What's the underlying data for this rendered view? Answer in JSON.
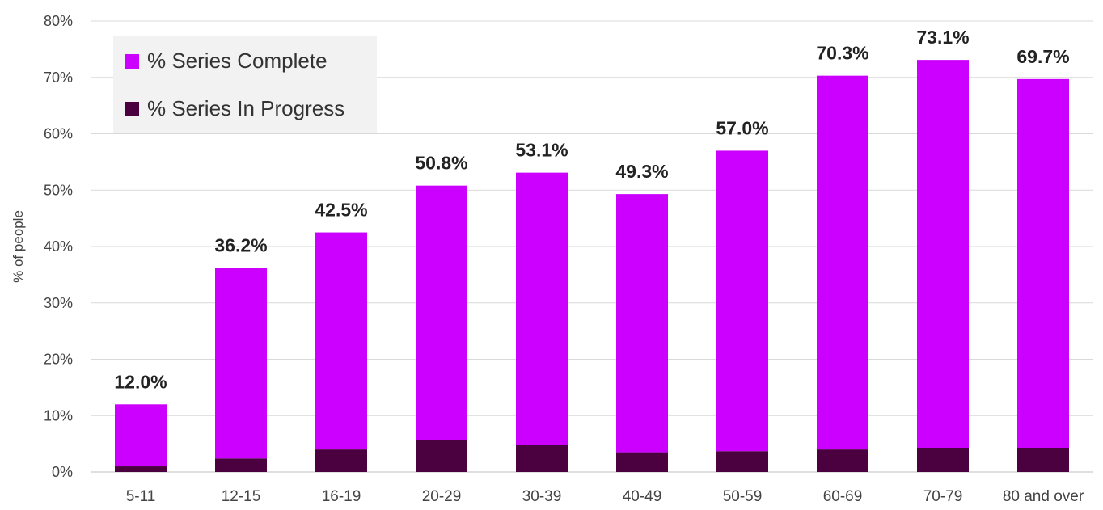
{
  "chart_data": {
    "type": "bar",
    "stacked": true,
    "title": "",
    "xlabel": "",
    "ylabel": "% of people",
    "ylim": [
      0,
      80
    ],
    "y_ticks": [
      "0%",
      "10%",
      "20%",
      "30%",
      "40%",
      "50%",
      "60%",
      "70%",
      "80%"
    ],
    "grid": true,
    "legend_placement": "top-left",
    "categories": [
      "5-11",
      "12-15",
      "16-19",
      "20-29",
      "30-39",
      "40-49",
      "50-59",
      "60-69",
      "70-79",
      "80 and over"
    ],
    "series": [
      {
        "name": "% Series In Progress",
        "color": "#4b0040",
        "values": [
          1.0,
          2.4,
          4.0,
          5.6,
          4.8,
          3.5,
          3.7,
          4.0,
          4.3,
          4.3
        ]
      },
      {
        "name": "% Series Complete",
        "color": "#cc00ff",
        "values": [
          11.0,
          33.8,
          38.5,
          45.2,
          48.3,
          45.8,
          53.3,
          66.3,
          68.8,
          65.4
        ]
      }
    ],
    "data_labels": [
      "12.0%",
      "36.2%",
      "42.5%",
      "50.8%",
      "53.1%",
      "49.3%",
      "57.0%",
      "70.3%",
      "73.1%",
      "69.7%"
    ],
    "totals": [
      12.0,
      36.2,
      42.5,
      50.8,
      53.1,
      49.3,
      57.0,
      70.3,
      73.1,
      69.7
    ]
  },
  "legend": {
    "items": [
      {
        "label": "% Series Complete",
        "color": "#cc00ff"
      },
      {
        "label": "% Series In Progress",
        "color": "#4b0040"
      }
    ]
  }
}
